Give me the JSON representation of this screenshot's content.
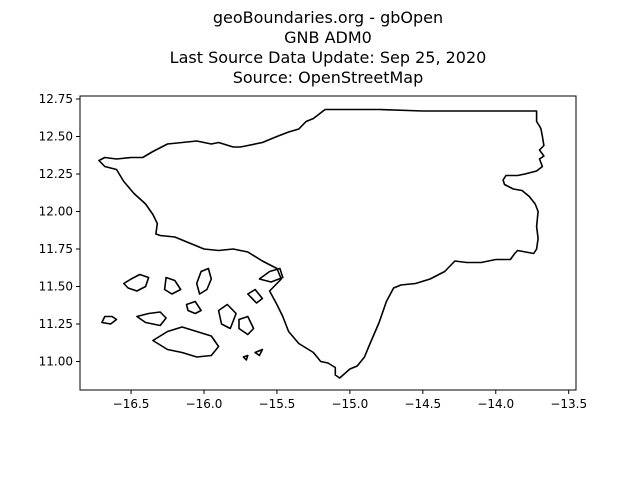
{
  "title": {
    "line1": "geoBoundaries.org - gbOpen",
    "line2": "GNB ADM0",
    "line3": "Last Source Data Update: Sep 25, 2020",
    "line4": "Source: OpenStreetMap"
  },
  "chart_data": {
    "type": "map",
    "xlim": [
      -16.85,
      -13.45
    ],
    "ylim": [
      10.81,
      12.77
    ],
    "x_ticks": [
      {
        "value": -16.5,
        "label": "−16.5"
      },
      {
        "value": -16.0,
        "label": "−16.0"
      },
      {
        "value": -15.5,
        "label": "−15.5"
      },
      {
        "value": -15.0,
        "label": "−15.0"
      },
      {
        "value": -14.5,
        "label": "−14.5"
      },
      {
        "value": -14.0,
        "label": "−14.0"
      },
      {
        "value": -13.5,
        "label": "−13.5"
      }
    ],
    "y_ticks": [
      {
        "value": 11.0,
        "label": "11.00"
      },
      {
        "value": 11.25,
        "label": "11.25"
      },
      {
        "value": 11.5,
        "label": "11.50"
      },
      {
        "value": 11.75,
        "label": "11.75"
      },
      {
        "value": 12.0,
        "label": "12.00"
      },
      {
        "value": 12.25,
        "label": "12.25"
      },
      {
        "value": 12.5,
        "label": "12.50"
      },
      {
        "value": 12.75,
        "label": "12.75"
      }
    ],
    "outline_color": "#000000",
    "mainland": [
      [
        -16.72,
        12.34
      ],
      [
        -16.68,
        12.36
      ],
      [
        -16.6,
        12.35
      ],
      [
        -16.5,
        12.36
      ],
      [
        -16.42,
        12.36
      ],
      [
        -16.35,
        12.4
      ],
      [
        -16.25,
        12.45
      ],
      [
        -16.15,
        12.46
      ],
      [
        -16.05,
        12.47
      ],
      [
        -15.95,
        12.45
      ],
      [
        -15.9,
        12.46
      ],
      [
        -15.8,
        12.43
      ],
      [
        -15.75,
        12.43
      ],
      [
        -15.6,
        12.46
      ],
      [
        -15.5,
        12.5
      ],
      [
        -15.42,
        12.53
      ],
      [
        -15.35,
        12.55
      ],
      [
        -15.3,
        12.6
      ],
      [
        -15.25,
        12.62
      ],
      [
        -15.17,
        12.68
      ],
      [
        -15.0,
        12.68
      ],
      [
        -14.8,
        12.68
      ],
      [
        -14.5,
        12.67
      ],
      [
        -14.2,
        12.67
      ],
      [
        -13.98,
        12.67
      ],
      [
        -13.78,
        12.67
      ],
      [
        -13.72,
        12.67
      ],
      [
        -13.72,
        12.6
      ],
      [
        -13.7,
        12.57
      ],
      [
        -13.69,
        12.55
      ],
      [
        -13.68,
        12.5
      ],
      [
        -13.67,
        12.44
      ],
      [
        -13.7,
        12.41
      ],
      [
        -13.67,
        12.37
      ],
      [
        -13.7,
        12.35
      ],
      [
        -13.68,
        12.3
      ],
      [
        -13.72,
        12.27
      ],
      [
        -13.8,
        12.25
      ],
      [
        -13.85,
        12.24
      ],
      [
        -13.93,
        12.24
      ],
      [
        -13.95,
        12.21
      ],
      [
        -13.94,
        12.18
      ],
      [
        -13.88,
        12.15
      ],
      [
        -13.82,
        12.14
      ],
      [
        -13.77,
        12.1
      ],
      [
        -13.73,
        12.05
      ],
      [
        -13.71,
        12.0
      ],
      [
        -13.72,
        11.9
      ],
      [
        -13.71,
        11.82
      ],
      [
        -13.72,
        11.75
      ],
      [
        -13.74,
        11.72
      ],
      [
        -13.85,
        11.74
      ],
      [
        -13.87,
        11.72
      ],
      [
        -13.9,
        11.68
      ],
      [
        -14.0,
        11.68
      ],
      [
        -14.1,
        11.66
      ],
      [
        -14.2,
        11.66
      ],
      [
        -14.28,
        11.67
      ],
      [
        -14.35,
        11.6
      ],
      [
        -14.45,
        11.55
      ],
      [
        -14.55,
        11.52
      ],
      [
        -14.65,
        11.51
      ],
      [
        -14.7,
        11.49
      ],
      [
        -14.75,
        11.4
      ],
      [
        -14.8,
        11.26
      ],
      [
        -14.87,
        11.1
      ],
      [
        -14.9,
        11.03
      ],
      [
        -14.95,
        10.97
      ],
      [
        -15.0,
        10.95
      ],
      [
        -15.07,
        10.89
      ],
      [
        -15.1,
        10.91
      ],
      [
        -15.1,
        10.96
      ],
      [
        -15.15,
        10.99
      ],
      [
        -15.2,
        11.0
      ],
      [
        -15.25,
        11.06
      ],
      [
        -15.35,
        11.12
      ],
      [
        -15.42,
        11.2
      ],
      [
        -15.46,
        11.3
      ],
      [
        -15.5,
        11.38
      ],
      [
        -15.55,
        11.47
      ],
      [
        -15.47,
        11.55
      ],
      [
        -15.5,
        11.62
      ],
      [
        -15.6,
        11.67
      ],
      [
        -15.7,
        11.73
      ],
      [
        -15.8,
        11.75
      ],
      [
        -15.9,
        11.74
      ],
      [
        -16.0,
        11.75
      ],
      [
        -16.1,
        11.79
      ],
      [
        -16.2,
        11.83
      ],
      [
        -16.3,
        11.84
      ],
      [
        -16.33,
        11.85
      ],
      [
        -16.32,
        11.92
      ],
      [
        -16.35,
        11.98
      ],
      [
        -16.4,
        12.05
      ],
      [
        -16.48,
        12.12
      ],
      [
        -16.55,
        12.2
      ],
      [
        -16.6,
        12.28
      ],
      [
        -16.68,
        12.3
      ],
      [
        -16.72,
        12.34
      ]
    ],
    "islands": [
      [
        [
          -16.7,
          11.26
        ],
        [
          -16.64,
          11.25
        ],
        [
          -16.6,
          11.28
        ],
        [
          -16.63,
          11.3
        ],
        [
          -16.68,
          11.3
        ],
        [
          -16.7,
          11.26
        ]
      ],
      [
        [
          -16.46,
          11.3
        ],
        [
          -16.4,
          11.26
        ],
        [
          -16.3,
          11.24
        ],
        [
          -16.26,
          11.29
        ],
        [
          -16.3,
          11.33
        ],
        [
          -16.38,
          11.32
        ],
        [
          -16.46,
          11.3
        ]
      ],
      [
        [
          -16.55,
          11.52
        ],
        [
          -16.5,
          11.55
        ],
        [
          -16.44,
          11.58
        ],
        [
          -16.38,
          11.56
        ],
        [
          -16.4,
          11.5
        ],
        [
          -16.46,
          11.47
        ],
        [
          -16.52,
          11.49
        ],
        [
          -16.55,
          11.52
        ]
      ],
      [
        [
          -16.26,
          11.56
        ],
        [
          -16.2,
          11.54
        ],
        [
          -16.16,
          11.48
        ],
        [
          -16.22,
          11.45
        ],
        [
          -16.27,
          11.48
        ],
        [
          -16.26,
          11.56
        ]
      ],
      [
        [
          -16.12,
          11.38
        ],
        [
          -16.06,
          11.4
        ],
        [
          -16.02,
          11.34
        ],
        [
          -16.06,
          11.32
        ],
        [
          -16.11,
          11.34
        ],
        [
          -16.12,
          11.38
        ]
      ],
      [
        [
          -16.03,
          11.45
        ],
        [
          -15.98,
          11.48
        ],
        [
          -15.95,
          11.55
        ],
        [
          -15.97,
          11.62
        ],
        [
          -16.02,
          11.6
        ],
        [
          -16.05,
          11.52
        ],
        [
          -16.03,
          11.45
        ]
      ],
      [
        [
          -16.35,
          11.14
        ],
        [
          -16.25,
          11.2
        ],
        [
          -16.15,
          11.23
        ],
        [
          -16.05,
          11.2
        ],
        [
          -15.95,
          11.17
        ],
        [
          -15.9,
          11.1
        ],
        [
          -15.95,
          11.04
        ],
        [
          -16.05,
          11.03
        ],
        [
          -16.15,
          11.06
        ],
        [
          -16.25,
          11.08
        ],
        [
          -16.35,
          11.14
        ]
      ],
      [
        [
          -15.9,
          11.34
        ],
        [
          -15.84,
          11.38
        ],
        [
          -15.78,
          11.32
        ],
        [
          -15.82,
          11.22
        ],
        [
          -15.88,
          11.25
        ],
        [
          -15.9,
          11.34
        ]
      ],
      [
        [
          -15.76,
          11.28
        ],
        [
          -15.7,
          11.3
        ],
        [
          -15.66,
          11.22
        ],
        [
          -15.7,
          11.18
        ],
        [
          -15.76,
          11.22
        ],
        [
          -15.76,
          11.28
        ]
      ],
      [
        [
          -15.7,
          11.45
        ],
        [
          -15.65,
          11.48
        ],
        [
          -15.6,
          11.42
        ],
        [
          -15.64,
          11.39
        ],
        [
          -15.7,
          11.45
        ]
      ],
      [
        [
          -15.62,
          11.55
        ],
        [
          -15.55,
          11.6
        ],
        [
          -15.48,
          11.62
        ],
        [
          -15.46,
          11.56
        ],
        [
          -15.54,
          11.53
        ],
        [
          -15.62,
          11.55
        ]
      ],
      [
        [
          -15.65,
          11.06
        ],
        [
          -15.6,
          11.08
        ],
        [
          -15.62,
          11.04
        ],
        [
          -15.65,
          11.06
        ]
      ],
      [
        [
          -15.73,
          11.03
        ],
        [
          -15.7,
          11.04
        ],
        [
          -15.71,
          11.01
        ],
        [
          -15.73,
          11.03
        ]
      ]
    ]
  }
}
